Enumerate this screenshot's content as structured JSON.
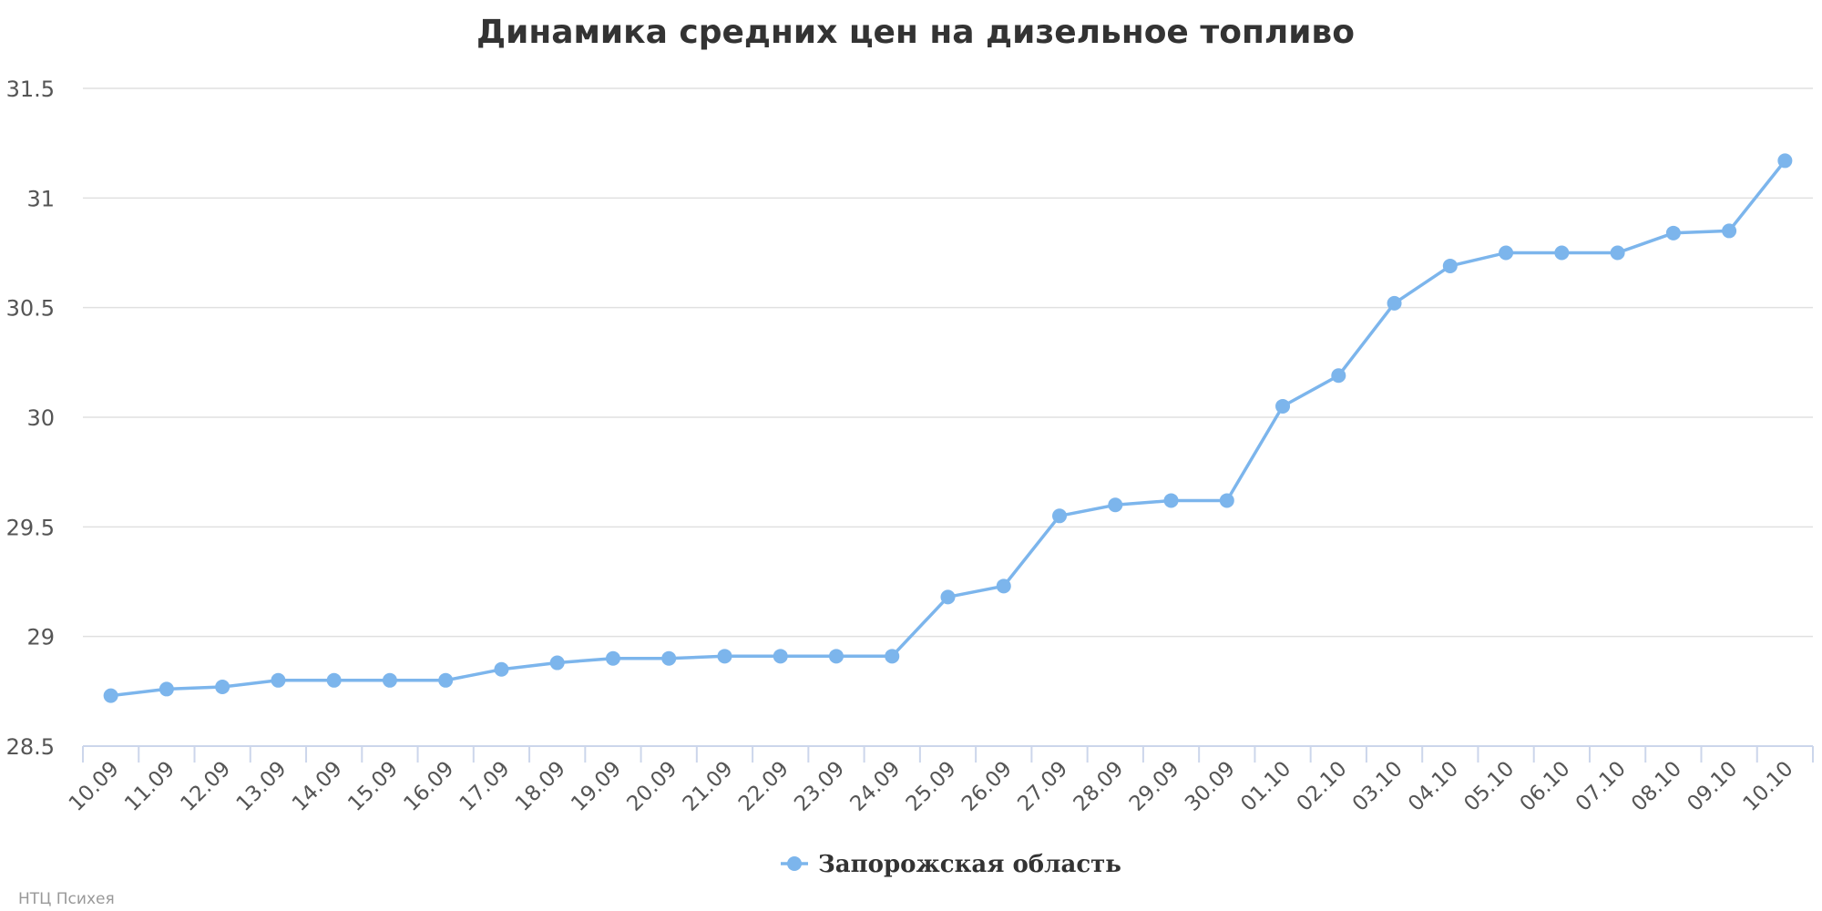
{
  "chart_data": {
    "type": "line",
    "title": "Динамика средних цен на дизельное топливо",
    "xlabel": "",
    "ylabel": "",
    "categories": [
      "10.09",
      "11.09",
      "12.09",
      "13.09",
      "14.09",
      "15.09",
      "16.09",
      "17.09",
      "18.09",
      "19.09",
      "20.09",
      "21.09",
      "22.09",
      "23.09",
      "24.09",
      "25.09",
      "26.09",
      "27.09",
      "28.09",
      "29.09",
      "30.09",
      "01.10",
      "02.10",
      "03.10",
      "04.10",
      "05.10",
      "06.10",
      "07.10",
      "08.10",
      "09.10",
      "10.10"
    ],
    "series": [
      {
        "name": "Запорожская область",
        "color": "#7cb5ec",
        "values": [
          28.73,
          28.76,
          28.77,
          28.8,
          28.8,
          28.8,
          28.8,
          28.85,
          28.88,
          28.9,
          28.9,
          28.91,
          28.91,
          28.91,
          28.91,
          29.18,
          29.23,
          29.55,
          29.6,
          29.62,
          29.62,
          30.05,
          30.19,
          30.52,
          30.69,
          30.75,
          30.75,
          30.75,
          30.84,
          30.85,
          31.17
        ]
      }
    ],
    "ylim": [
      28.5,
      31.5
    ],
    "yticks": [
      "28.5",
      "29",
      "29.5",
      "30",
      "30.5",
      "31",
      "31.5"
    ],
    "grid": true,
    "legend_position": "bottom-center"
  },
  "credits": "НТЦ Психея"
}
